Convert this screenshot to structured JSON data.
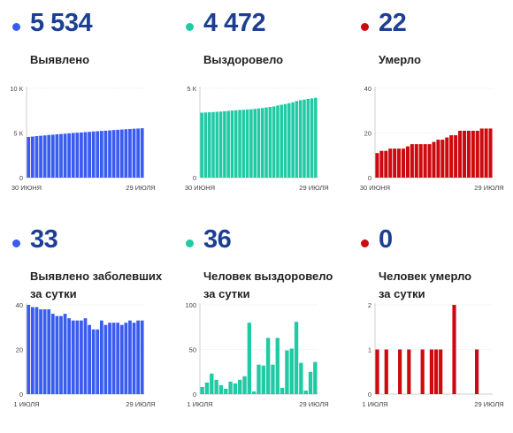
{
  "chart_data": [
    {
      "type": "bar",
      "big": "5 534",
      "label_lines": [
        "Выявлено"
      ],
      "color": "#3b5cf0",
      "ylim": [
        0,
        10000
      ],
      "yticks": [
        {
          "v": 10000,
          "t": "10 К"
        },
        {
          "v": 5000,
          "t": "5 К"
        },
        {
          "v": 0,
          "t": "0"
        }
      ],
      "xlabels": [
        "30 ИЮНЯ",
        "29 ИЮЛЯ"
      ],
      "values": [
        4560,
        4600,
        4650,
        4690,
        4730,
        4780,
        4810,
        4850,
        4880,
        4920,
        4960,
        5000,
        5030,
        5060,
        5100,
        5130,
        5170,
        5200,
        5230,
        5260,
        5290,
        5330,
        5360,
        5390,
        5420,
        5450,
        5480,
        5500,
        5534
      ]
    },
    {
      "type": "bar",
      "big": "4 472",
      "label_lines": [
        "Выздоровело"
      ],
      "color": "#1fcaa4",
      "ylim": [
        0,
        5000
      ],
      "yticks": [
        {
          "v": 5000,
          "t": "5 К"
        },
        {
          "v": 0,
          "t": "0"
        }
      ],
      "xlabels": [
        "30 ИЮНЯ",
        "29 ИЮЛЯ"
      ],
      "values": [
        3640,
        3650,
        3660,
        3670,
        3690,
        3700,
        3720,
        3740,
        3760,
        3770,
        3790,
        3800,
        3820,
        3830,
        3850,
        3880,
        3900,
        3930,
        3960,
        3990,
        4040,
        4080,
        4120,
        4170,
        4220,
        4290,
        4340,
        4370,
        4410,
        4436,
        4472
      ]
    },
    {
      "type": "bar",
      "big": "22",
      "label_lines": [
        "Умерло"
      ],
      "color": "#cc0a10",
      "ylim": [
        0,
        40
      ],
      "yticks": [
        {
          "v": 40,
          "t": "40"
        },
        {
          "v": 20,
          "t": "20"
        },
        {
          "v": 0,
          "t": "0"
        }
      ],
      "xlabels": [
        "30 ИЮНЯ",
        "29 ИЮЛЯ"
      ],
      "values": [
        11,
        12,
        12,
        13,
        13,
        13,
        13,
        14,
        15,
        15,
        15,
        15,
        15,
        16,
        17,
        17,
        18,
        19,
        19,
        21,
        21,
        21,
        21,
        21,
        22,
        22,
        22
      ]
    },
    {
      "type": "bar",
      "big": "33",
      "label_lines": [
        "Выявлено заболевших",
        "за сутки"
      ],
      "color": "#3b5cf0",
      "ylim": [
        0,
        40
      ],
      "yticks": [
        {
          "v": 40,
          "t": "40"
        },
        {
          "v": 20,
          "t": "20"
        },
        {
          "v": 0,
          "t": "0"
        }
      ],
      "xlabels": [
        "1 ИЮЛЯ",
        "29 ИЮЛЯ"
      ],
      "values": [
        40,
        39,
        39,
        38,
        38,
        38,
        36,
        35,
        35,
        36,
        34,
        33,
        33,
        33,
        34,
        31,
        29,
        29,
        33,
        31,
        32,
        32,
        32,
        31,
        32,
        33,
        32,
        33,
        33
      ]
    },
    {
      "type": "bar",
      "big": "36",
      "label_lines": [
        "Человек выздоровело",
        "за сутки"
      ],
      "color": "#1fcaa4",
      "ylim": [
        0,
        100
      ],
      "yticks": [
        {
          "v": 100,
          "t": "100"
        },
        {
          "v": 50,
          "t": "50"
        },
        {
          "v": 0,
          "t": "0"
        }
      ],
      "xlabels": [
        "1 ИЮЛЯ",
        "29 ИЮЛЯ"
      ],
      "values": [
        8,
        13,
        23,
        16,
        10,
        6,
        14,
        12,
        16,
        20,
        80,
        3,
        33,
        32,
        63,
        33,
        63,
        7,
        49,
        51,
        81,
        35,
        4,
        25,
        36
      ]
    },
    {
      "type": "bar",
      "big": "0",
      "label_lines": [
        "Человек умерло",
        "за сутки"
      ],
      "color": "#cc0a10",
      "ylim": [
        0,
        2
      ],
      "yticks": [
        {
          "v": 2,
          "t": "2"
        },
        {
          "v": 1,
          "t": "1"
        },
        {
          "v": 0,
          "t": "0"
        }
      ],
      "xlabels": [
        "1 ИЮЛЯ",
        "29 ИЮЛЯ"
      ],
      "values": [
        1,
        0,
        1,
        0,
        0,
        1,
        0,
        1,
        0,
        0,
        1,
        0,
        1,
        1,
        1,
        0,
        0,
        2,
        0,
        0,
        0,
        0,
        1,
        0,
        0,
        0
      ]
    }
  ]
}
